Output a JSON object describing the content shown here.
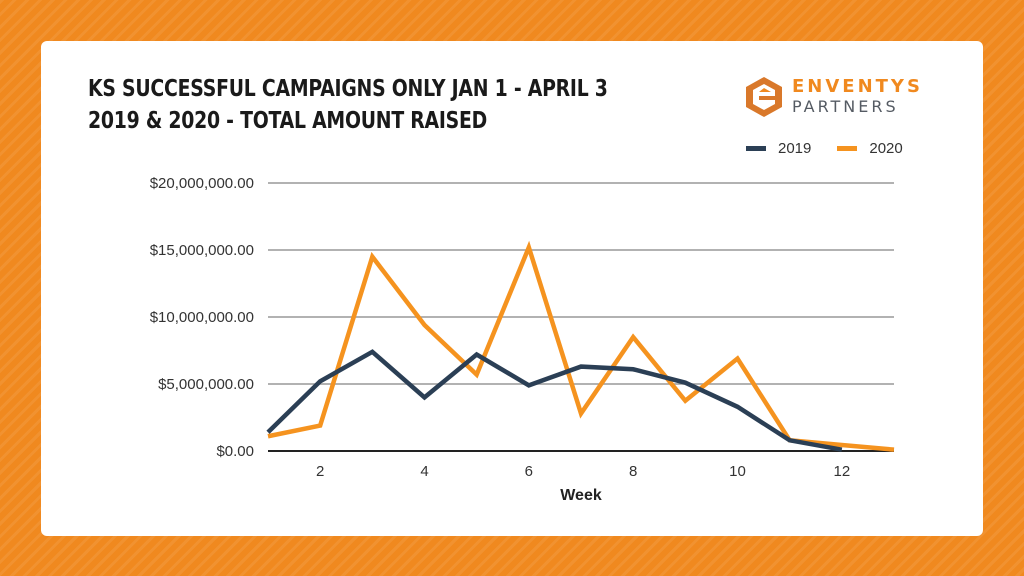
{
  "logo": {
    "line1": "ENVENTYS",
    "line2": "PARTNERS"
  },
  "colors": {
    "background": "#f0891f",
    "2019": "#2b3f55",
    "2020": "#f5931f"
  },
  "chart_data": {
    "type": "line",
    "title": [
      "KS SUCCESSFUL CAMPAIGNS ONLY JAN 1 - APRIL 3",
      "2019 & 2020 - TOTAL AMOUNT RAISED"
    ],
    "xlabel": "Week",
    "ylabel": "",
    "x": [
      1,
      2,
      3,
      4,
      5,
      6,
      7,
      8,
      9,
      10,
      11,
      12,
      13
    ],
    "xticks": [
      2,
      4,
      6,
      8,
      10,
      12
    ],
    "xlim": [
      1,
      13
    ],
    "ylim": [
      0,
      20000000
    ],
    "yticks": [
      "$0.00",
      "$5,000,000.00",
      "$10,000,000.00",
      "$15,000,000.00",
      "$20,000,000.00"
    ],
    "ytick_values": [
      0,
      5000000,
      10000000,
      15000000,
      20000000
    ],
    "grid": "horizontal",
    "legend": "top-right",
    "series": [
      {
        "name": "2019",
        "color": "#2b3f55",
        "values": [
          1400000,
          5200000,
          7400000,
          4000000,
          7200000,
          4900000,
          6300000,
          6100000,
          5100000,
          3300000,
          800000,
          100000,
          null
        ]
      },
      {
        "name": "2020",
        "color": "#f5931f",
        "values": [
          1100000,
          1900000,
          14500000,
          9400000,
          5700000,
          15200000,
          2800000,
          8500000,
          3750000,
          6900000,
          800000,
          450000,
          100000
        ]
      }
    ]
  }
}
